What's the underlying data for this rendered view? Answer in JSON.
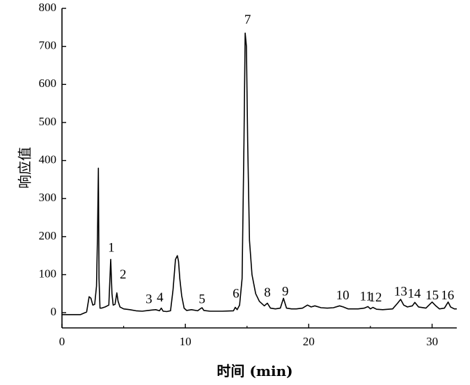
{
  "chart_data": {
    "type": "line",
    "xlabel": "时间 (min)",
    "ylabel": "响应值",
    "xlim": [
      0,
      32
    ],
    "ylim": [
      -40,
      800
    ],
    "x_ticks": [
      0,
      10,
      20,
      30
    ],
    "y_ticks": [
      0,
      100,
      200,
      300,
      400,
      500,
      600,
      700,
      800
    ],
    "grid": false,
    "series": [
      {
        "x": [
          0,
          1.5,
          2.0,
          2.2,
          2.35,
          2.5,
          2.65,
          2.8,
          2.88,
          2.95,
          3.0,
          3.08,
          3.2,
          3.5,
          3.8,
          3.95,
          4.05,
          4.15,
          4.3,
          4.45,
          4.55,
          4.7,
          5.0,
          5.5,
          6.0,
          6.5,
          7.0,
          7.3,
          7.6,
          7.9,
          8.05,
          8.2,
          8.5,
          8.8,
          9.0,
          9.2,
          9.35,
          9.45,
          9.55,
          9.7,
          9.9,
          10.1,
          10.5,
          11.0,
          11.2,
          11.35,
          11.5,
          12.0,
          13.0,
          13.9,
          14.05,
          14.2,
          14.4,
          14.6,
          14.75,
          14.85,
          14.95,
          15.05,
          15.2,
          15.4,
          15.7,
          16.0,
          16.4,
          16.65,
          16.9,
          17.3,
          17.7,
          17.95,
          18.2,
          18.6,
          19.0,
          19.5,
          19.9,
          20.2,
          20.5,
          21.0,
          21.5,
          22.0,
          22.5,
          22.8,
          23.2,
          24.0,
          24.5,
          24.8,
          25.0,
          25.2,
          25.5,
          26.0,
          26.8,
          27.2,
          27.45,
          27.7,
          28.0,
          28.4,
          28.6,
          28.9,
          29.5,
          30.0,
          30.3,
          30.6,
          31.0,
          31.3,
          31.5,
          31.8,
          32.0
        ],
        "y": [
          -5,
          -5,
          2,
          42,
          38,
          20,
          22,
          70,
          200,
          380,
          90,
          12,
          12,
          15,
          20,
          140,
          50,
          20,
          22,
          52,
          30,
          15,
          10,
          8,
          5,
          4,
          6,
          7,
          8,
          5,
          12,
          4,
          3,
          5,
          60,
          140,
          150,
          135,
          90,
          45,
          12,
          6,
          8,
          5,
          10,
          13,
          6,
          4,
          4,
          5,
          14,
          8,
          20,
          90,
          450,
          735,
          700,
          450,
          190,
          100,
          50,
          30,
          18,
          25,
          12,
          10,
          12,
          38,
          12,
          10,
          10,
          12,
          20,
          15,
          18,
          13,
          12,
          13,
          18,
          15,
          10,
          10,
          12,
          16,
          10,
          14,
          9,
          8,
          10,
          25,
          35,
          20,
          15,
          18,
          27,
          15,
          12,
          28,
          18,
          10,
          12,
          28,
          15,
          10,
          10
        ]
      }
    ],
    "peak_labels": [
      {
        "text": "1",
        "x": 4.0,
        "y": 160
      },
      {
        "text": "2",
        "x": 4.95,
        "y": 90
      },
      {
        "text": "3",
        "x": 7.05,
        "y": 25
      },
      {
        "text": "4",
        "x": 7.95,
        "y": 30
      },
      {
        "text": "5",
        "x": 11.35,
        "y": 25
      },
      {
        "text": "6",
        "x": 14.1,
        "y": 40
      },
      {
        "text": "7",
        "x": 15.05,
        "y": 760
      },
      {
        "text": "8",
        "x": 16.65,
        "y": 42
      },
      {
        "text": "9",
        "x": 18.1,
        "y": 45
      },
      {
        "text": "10",
        "x": 22.75,
        "y": 35
      },
      {
        "text": "11",
        "x": 24.65,
        "y": 32
      },
      {
        "text": "12",
        "x": 25.4,
        "y": 30
      },
      {
        "text": "13",
        "x": 27.45,
        "y": 45
      },
      {
        "text": "14",
        "x": 28.55,
        "y": 40
      },
      {
        "text": "15",
        "x": 30.0,
        "y": 35
      },
      {
        "text": "16",
        "x": 31.25,
        "y": 35
      }
    ]
  }
}
